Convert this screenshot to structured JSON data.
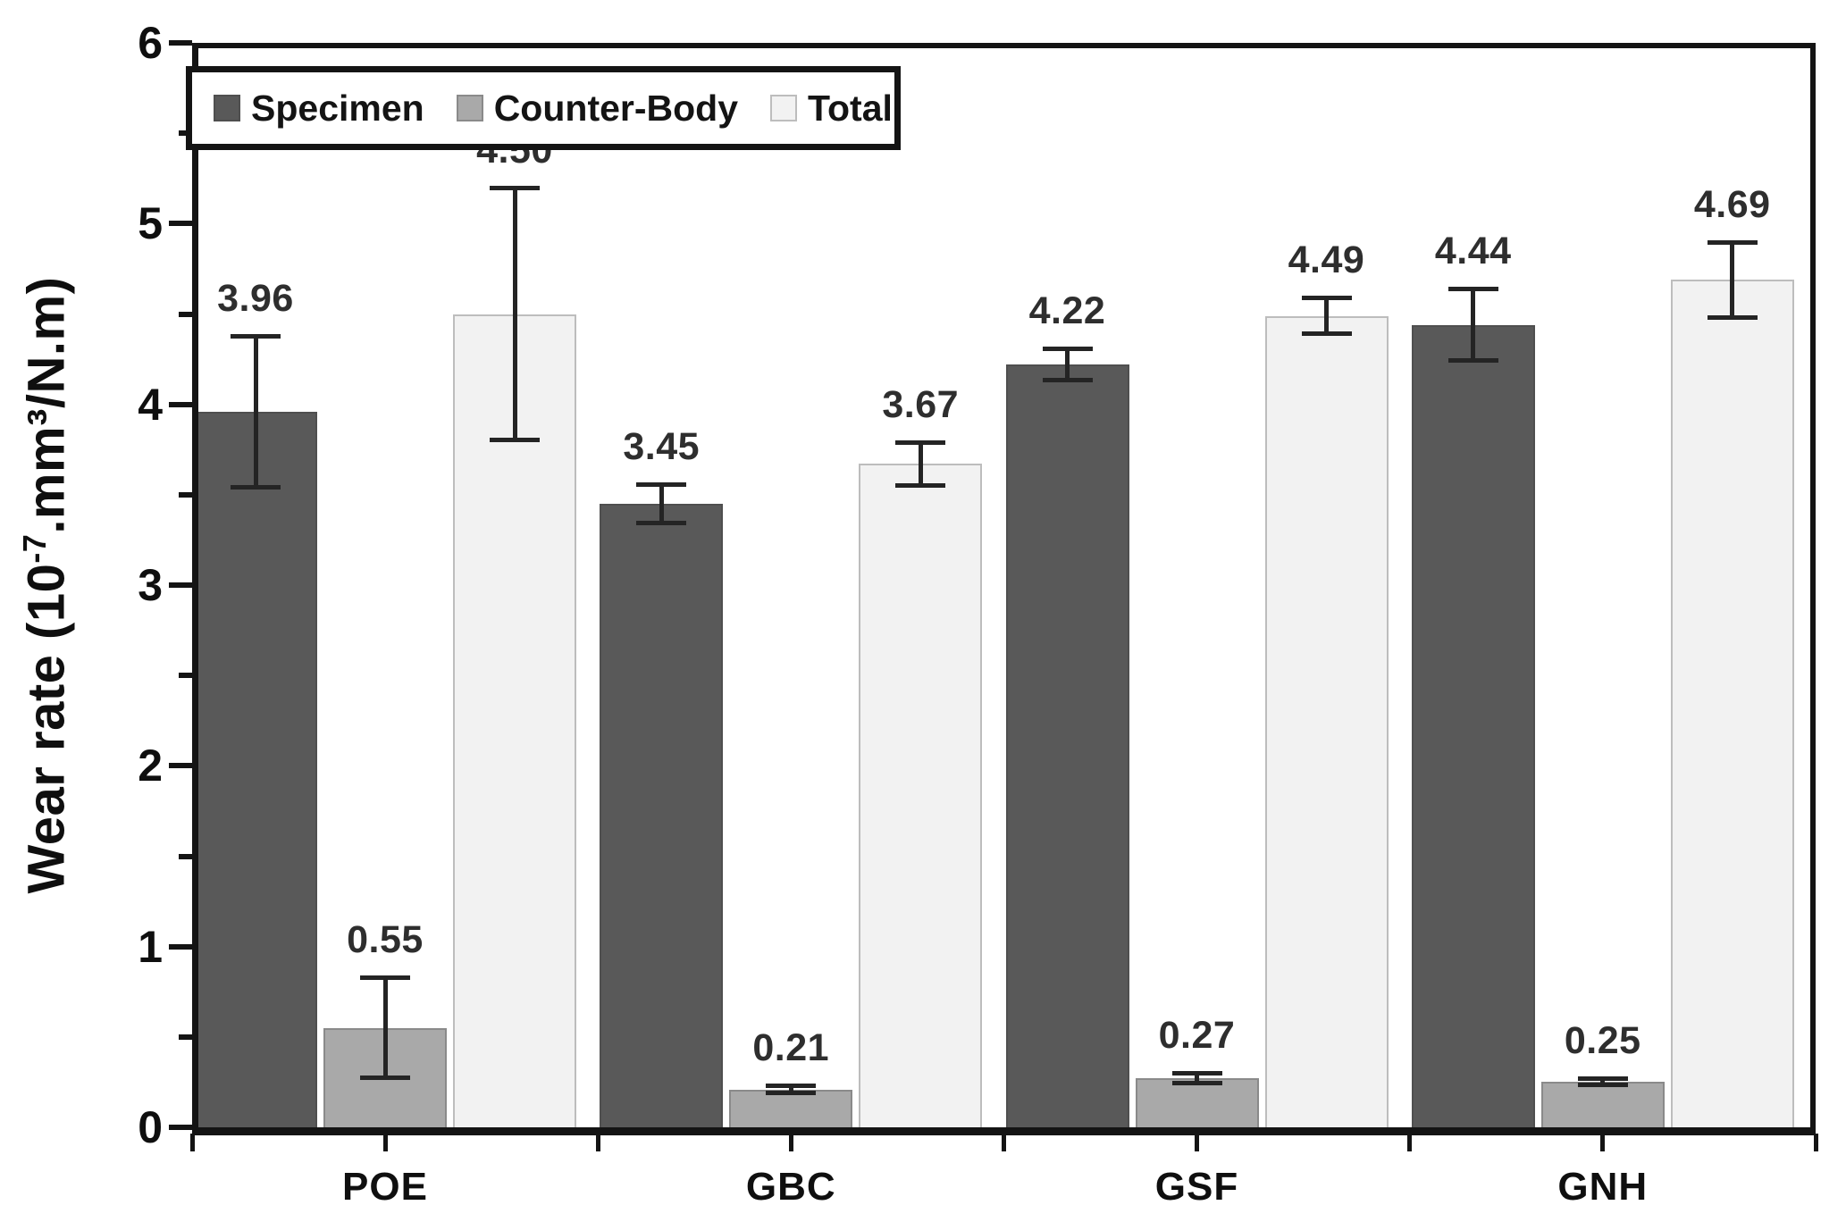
{
  "chart_data": {
    "type": "bar",
    "title": "",
    "xlabel": "",
    "ylabel": "Wear rate (10⁻⁷.mm³/N.m)",
    "ylabel_parts": {
      "pre": "Wear rate (10",
      "sup": "-7",
      "post": ".mm³/N.m)"
    },
    "ylim": [
      0,
      6
    ],
    "ytick_step": 1,
    "yminor_step": 0.5,
    "grid": "off",
    "legend_position": "top-left-inside",
    "value_label_decimals": 2,
    "categories": [
      "POE",
      "GBC",
      "GSF",
      "GNH"
    ],
    "series": [
      {
        "name": "Specimen",
        "color": "#595959",
        "border_color": "#4f4f4f",
        "values": [
          3.96,
          3.45,
          4.22,
          4.44
        ],
        "errors": [
          0.42,
          0.11,
          0.09,
          0.2
        ]
      },
      {
        "name": "Counter-Body",
        "color": "#a9a9a9",
        "border_color": "#8a8a8a",
        "values": [
          0.55,
          0.21,
          0.27,
          0.25
        ],
        "errors": [
          0.28,
          0.02,
          0.03,
          0.02
        ]
      },
      {
        "name": "Total",
        "color": "#f2f2f2",
        "border_color": "#bdbdbd",
        "values": [
          4.5,
          3.67,
          4.49,
          4.69
        ],
        "errors": [
          0.7,
          0.12,
          0.1,
          0.21
        ]
      }
    ],
    "colors": {
      "axis": "#141414",
      "error_bar": "#242424",
      "background": "#ffffff"
    }
  }
}
